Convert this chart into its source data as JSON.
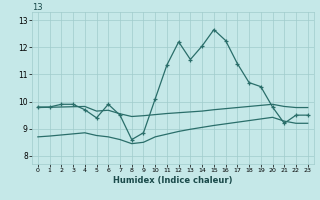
{
  "xlabel": "Humidex (Indice chaleur)",
  "x_ticks": [
    0,
    1,
    2,
    3,
    4,
    5,
    6,
    7,
    8,
    9,
    10,
    11,
    12,
    13,
    14,
    15,
    16,
    17,
    18,
    19,
    20,
    21,
    22,
    23
  ],
  "y_ticks": [
    8,
    9,
    10,
    11,
    12,
    13
  ],
  "ylim": [
    7.7,
    13.3
  ],
  "xlim": [
    -0.5,
    23.5
  ],
  "bg_color": "#c5e8e8",
  "grid_color": "#a0cccc",
  "line_color": "#2a6e6a",
  "line1_x": [
    0,
    1,
    2,
    3,
    4,
    5,
    6,
    7,
    8,
    9,
    10,
    11,
    12,
    13,
    14,
    15,
    16,
    17,
    18,
    19,
    20,
    21,
    22,
    23
  ],
  "line1_y": [
    9.8,
    9.8,
    9.9,
    9.9,
    9.7,
    9.4,
    9.9,
    9.5,
    8.6,
    8.85,
    10.1,
    11.35,
    12.2,
    11.55,
    12.05,
    12.65,
    12.25,
    11.4,
    10.7,
    10.55,
    9.8,
    9.2,
    9.5,
    9.5
  ],
  "line2_x": [
    0,
    1,
    2,
    3,
    4,
    5,
    6,
    7,
    8,
    9,
    10,
    11,
    12,
    13,
    14,
    15,
    16,
    17,
    18,
    19,
    20,
    21,
    22,
    23
  ],
  "line2_y": [
    9.78,
    9.79,
    9.8,
    9.81,
    9.82,
    9.65,
    9.68,
    9.55,
    9.45,
    9.48,
    9.52,
    9.56,
    9.59,
    9.62,
    9.65,
    9.7,
    9.74,
    9.78,
    9.82,
    9.86,
    9.9,
    9.82,
    9.78,
    9.78
  ],
  "line3_x": [
    0,
    1,
    2,
    3,
    4,
    5,
    6,
    7,
    8,
    9,
    10,
    11,
    12,
    13,
    14,
    15,
    16,
    17,
    18,
    19,
    20,
    21,
    22,
    23
  ],
  "line3_y": [
    8.7,
    8.73,
    8.77,
    8.81,
    8.85,
    8.75,
    8.7,
    8.6,
    8.45,
    8.5,
    8.7,
    8.8,
    8.9,
    8.98,
    9.05,
    9.12,
    9.18,
    9.24,
    9.3,
    9.36,
    9.42,
    9.28,
    9.2,
    9.2
  ]
}
